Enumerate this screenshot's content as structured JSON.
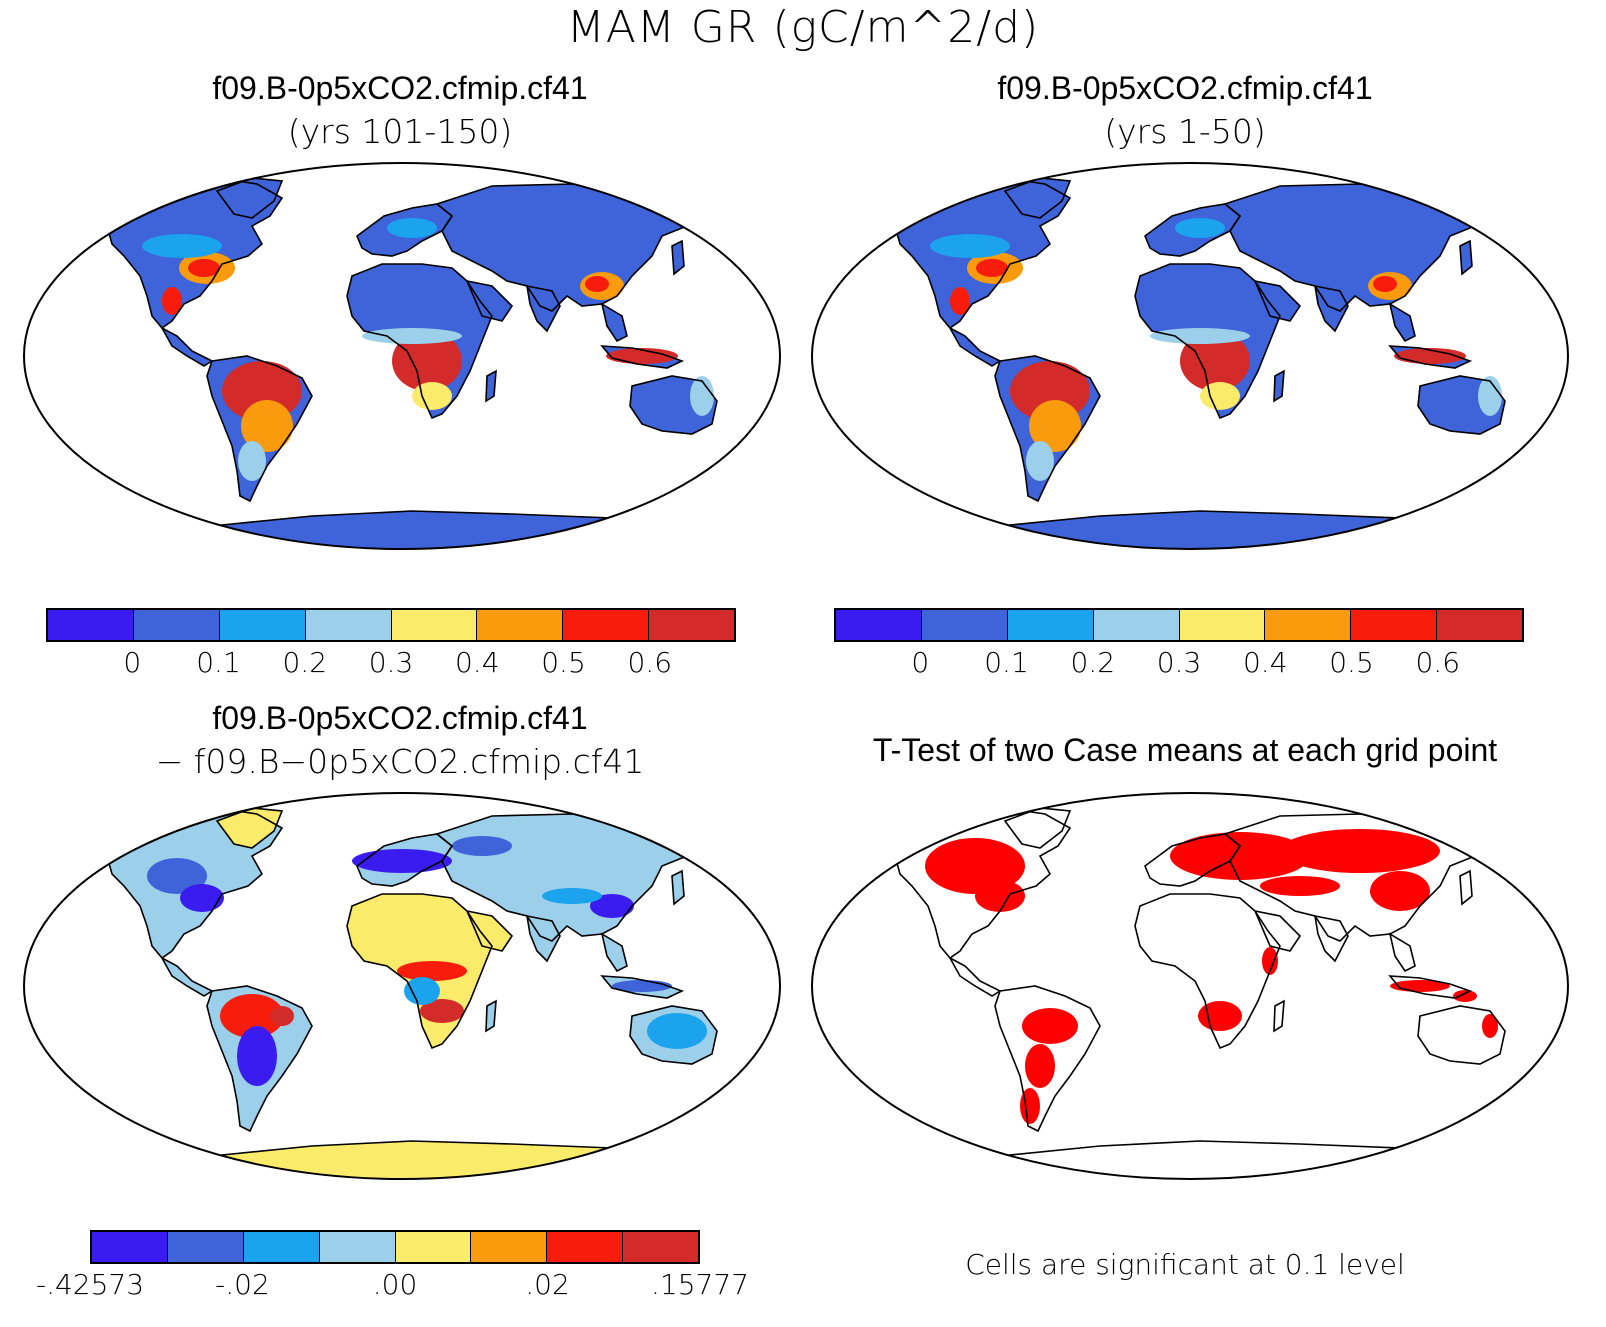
{
  "title": "MAM GR (gC/m^2/d)",
  "panels": {
    "top_left": {
      "title": "f09.B-0p5xCO2.cfmip.cf41",
      "subtitle": "(yrs 101-150)"
    },
    "top_right": {
      "title": "f09.B-0p5xCO2.cfmip.cf41",
      "subtitle": "(yrs 1-50)"
    },
    "bottom_left": {
      "title": "f09.B-0p5xCO2.cfmip.cf41",
      "subtitle": "− f09.B−0p5xCO2.cfmip.cf41"
    },
    "bottom_right": {
      "title": "T-Test of two Case means at each grid point",
      "footnote": "Cells are significant at 0.1 level"
    }
  },
  "colorbars": {
    "abs": {
      "colors": [
        "#3b1cf0",
        "#3f63d8",
        "#1ba3ee",
        "#9ccfe9",
        "#fbeb6b",
        "#f99b0c",
        "#f71c0c",
        "#d32a2a"
      ],
      "ticks": [
        "0",
        "0.1",
        "0.2",
        "0.3",
        "0.4",
        "0.5",
        "0.6"
      ]
    },
    "diff": {
      "colors": [
        "#3b1cf0",
        "#3f63d8",
        "#1ba3ee",
        "#9ccfe9",
        "#fbeb6b",
        "#f99b0c",
        "#f71c0c",
        "#d32a2a"
      ],
      "ticks": [
        "-.42573",
        "-.02",
        ".00",
        ".02",
        ".15777"
      ]
    }
  },
  "significance_color": "#ff0000"
}
